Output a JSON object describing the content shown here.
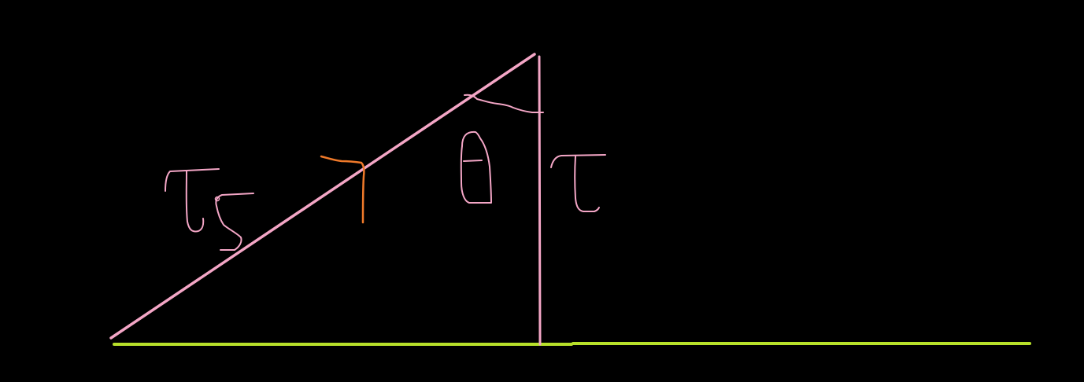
{
  "colors": {
    "background": "#000000",
    "ground": "#b7e02a",
    "pink": "#f4a6c6",
    "orange": "#f07a2a"
  },
  "elements": {
    "ground_line": "ground-line",
    "incline": "incline-line",
    "vertical": "vertical-line",
    "angle_arc": "angle-arc",
    "theta": "theta-symbol",
    "tau_right": "tau-symbol-right",
    "tau_s": "tau-s-symbol",
    "normal_marker": "perpendicular-marker"
  }
}
